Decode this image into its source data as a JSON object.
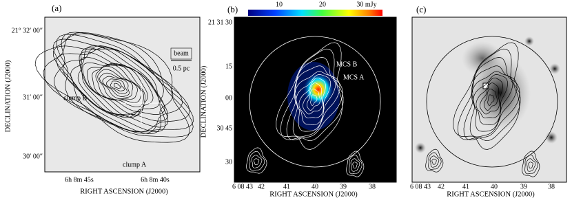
{
  "panels": [
    {
      "label": "(a)",
      "ylabel": "DECLINATION (J2000)",
      "xlabel": "RIGHT ASCENSION (J2000)",
      "yticks": [
        "21° 32′ 00″",
        "31′ 00″",
        "30′ 00″"
      ],
      "xticks": [
        "6h 8m 45s",
        "6h 8m 40s"
      ],
      "annotations": [
        "beam",
        "0.5 pc",
        "clump B",
        "clump A"
      ]
    },
    {
      "label": "(b)",
      "ylabel": "DECLINATION (J2000)",
      "xlabel": "RIGHT ASCENSION (J2000)",
      "colorbar": [
        "10",
        "20",
        "30 mJy"
      ],
      "yticks": [
        "21 31 30",
        "15",
        "00",
        "30 45",
        "30"
      ],
      "xticks": [
        "6 08 43",
        "42",
        "41",
        "40",
        "39",
        "38"
      ],
      "annotations": [
        "MCS B",
        "MCS A"
      ]
    },
    {
      "label": "(c)",
      "xlabel": "RIGHT ASCENSION (J2000)",
      "xticks": [
        "6 08 43",
        "42",
        "41",
        "40",
        "39",
        "38"
      ]
    }
  ]
}
